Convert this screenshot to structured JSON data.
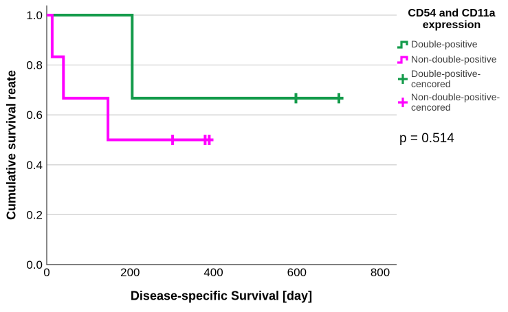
{
  "chart_data": {
    "type": "line",
    "subtype": "kaplan-meier-step-survival",
    "xlabel": "Disease-specific Survival [day]",
    "ylabel": "Cumulative survival reate",
    "xlim": [
      0,
      838
    ],
    "ylim": [
      0,
      1.04
    ],
    "grid": "horizontal-only",
    "legend_position": "right",
    "x_ticks": [
      {
        "value": 0,
        "label": "0"
      },
      {
        "value": 200,
        "label": "200"
      },
      {
        "value": 400,
        "label": "400"
      },
      {
        "value": 600,
        "label": "600"
      },
      {
        "value": 800,
        "label": "800"
      }
    ],
    "y_ticks": [
      {
        "value": 0.0,
        "label": "0.0"
      },
      {
        "value": 0.2,
        "label": "0.2"
      },
      {
        "value": 0.4,
        "label": "0.4"
      },
      {
        "value": 0.6,
        "label": "0.6"
      },
      {
        "value": 0.8,
        "label": "0.8"
      },
      {
        "value": 1.0,
        "label": "1.0"
      }
    ],
    "series": [
      {
        "name": "Double-positive",
        "color": "#149b4b",
        "step_points": [
          [
            0,
            1.0
          ],
          [
            205,
            1.0
          ],
          [
            205,
            0.667
          ],
          [
            712,
            0.667
          ]
        ],
        "censored": [
          [
            598,
            0.667
          ],
          [
            701,
            0.667
          ]
        ]
      },
      {
        "name": "Non-double-positive",
        "color": "#ff00ff",
        "step_points": [
          [
            0,
            1.0
          ],
          [
            13,
            1.0
          ],
          [
            13,
            0.833
          ],
          [
            40,
            0.833
          ],
          [
            40,
            0.667
          ],
          [
            147,
            0.667
          ],
          [
            147,
            0.5
          ],
          [
            400,
            0.5
          ]
        ],
        "censored": [
          [
            302,
            0.5
          ],
          [
            380,
            0.5
          ],
          [
            390,
            0.5
          ]
        ]
      }
    ]
  },
  "legend": {
    "title_lines": [
      "CD54 and CD11a",
      "expression"
    ],
    "items": [
      {
        "label_lines": [
          "Double-positive"
        ],
        "color": "#149b4b",
        "symbol": "step-line"
      },
      {
        "label_lines": [
          "Non-double-positive"
        ],
        "color": "#ff00ff",
        "symbol": "step-line"
      },
      {
        "label_lines": [
          "Double-positive-",
          "cencored"
        ],
        "color": "#149b4b",
        "symbol": "plus"
      },
      {
        "label_lines": [
          "Non-double-positive-",
          "cencored"
        ],
        "color": "#ff00ff",
        "symbol": "plus"
      }
    ]
  },
  "annotation": {
    "p_value": "p = 0.514"
  },
  "colors": {
    "green": "#149b4b",
    "magenta": "#ff00ff",
    "axis": "#555555",
    "gridline": "#d2d2d2",
    "legend_text": "#3d3d3d",
    "text": "#000000"
  }
}
